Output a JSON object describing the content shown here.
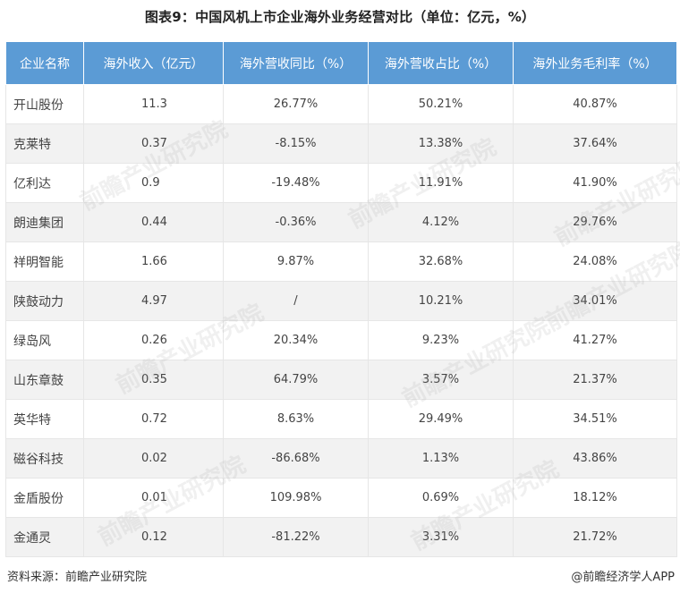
{
  "chart_data": {
    "type": "table",
    "title": "图表9：中国风机上市企业海外业务经营对比（单位：亿元，%）",
    "columns": [
      "企业名称",
      "海外收入（亿元）",
      "海外营收同比（%）",
      "海外营收占比（%）",
      "海外业务毛利率（%）"
    ],
    "rows": [
      [
        "开山股份",
        "11.3",
        "26.77%",
        "50.21%",
        "40.87%"
      ],
      [
        "克莱特",
        "0.37",
        "-8.15%",
        "13.38%",
        "37.64%"
      ],
      [
        "亿利达",
        "0.9",
        "-19.48%",
        "11.91%",
        "41.90%"
      ],
      [
        "朗迪集团",
        "0.44",
        "-0.36%",
        "4.12%",
        "29.76%"
      ],
      [
        "祥明智能",
        "1.66",
        "9.87%",
        "32.68%",
        "24.08%"
      ],
      [
        "陕鼓动力",
        "4.97",
        "/",
        "10.21%",
        "34.01%"
      ],
      [
        "绿岛风",
        "0.26",
        "20.34%",
        "9.23%",
        "41.27%"
      ],
      [
        "山东章鼓",
        "0.35",
        "64.79%",
        "3.57%",
        "21.37%"
      ],
      [
        "英华特",
        "0.72",
        "8.63%",
        "29.49%",
        "34.51%"
      ],
      [
        "磁谷科技",
        "0.02",
        "-86.68%",
        "1.13%",
        "43.86%"
      ],
      [
        "金盾股份",
        "0.01",
        "109.98%",
        "0.69%",
        "18.12%"
      ],
      [
        "金通灵",
        "0.12",
        "-81.22%",
        "3.31%",
        "21.72%"
      ]
    ]
  },
  "footer": {
    "source": "资料来源：前瞻产业研究院",
    "brand": "@前瞻经济学人APP"
  },
  "watermark": "前瞻产业研究院",
  "colors": {
    "header_bg": "#5b9bd5",
    "stripe": "#f2f2f2"
  }
}
